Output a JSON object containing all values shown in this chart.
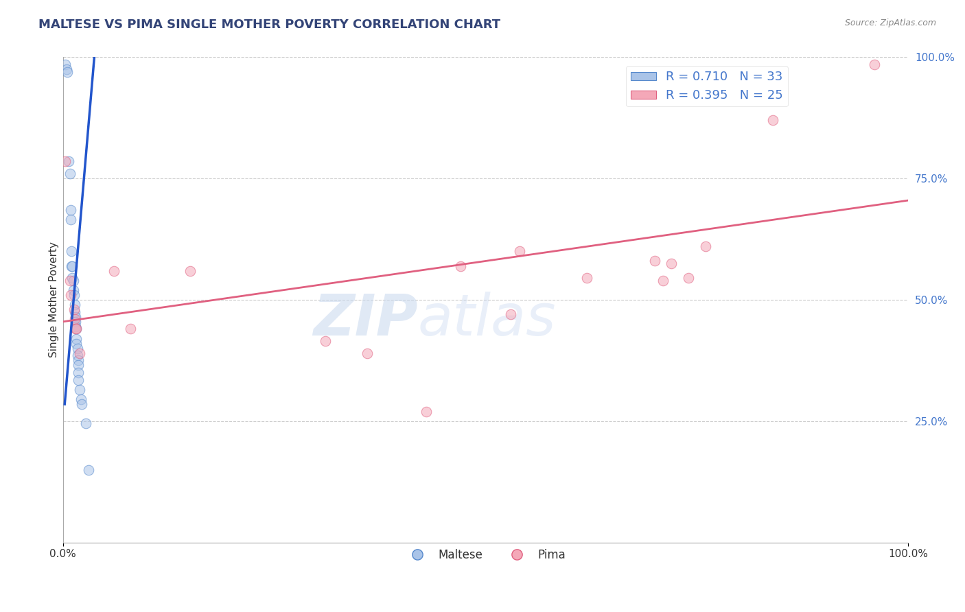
{
  "title": "MALTESE VS PIMA SINGLE MOTHER POVERTY CORRELATION CHART",
  "source": "Source: ZipAtlas.com",
  "ylabel": "Single Mother Poverty",
  "xlim": [
    0.0,
    1.0
  ],
  "ylim": [
    0.0,
    1.0
  ],
  "grid_color": "#cccccc",
  "background_color": "#ffffff",
  "maltese_color": "#aac4e8",
  "pima_color": "#f4a8b8",
  "maltese_edge": "#5588cc",
  "pima_edge": "#e06080",
  "maltese_line_color": "#2255cc",
  "pima_line_color": "#e06080",
  "maltese_R": "0.710",
  "maltese_N": "33",
  "pima_R": "0.395",
  "pima_N": "25",
  "legend_color": "#4477cc",
  "maltese_x": [
    0.003,
    0.004,
    0.005,
    0.007,
    0.008,
    0.009,
    0.009,
    0.01,
    0.01,
    0.011,
    0.011,
    0.012,
    0.012,
    0.013,
    0.014,
    0.014,
    0.015,
    0.015,
    0.015,
    0.016,
    0.016,
    0.016,
    0.017,
    0.017,
    0.018,
    0.018,
    0.018,
    0.018,
    0.02,
    0.021,
    0.022,
    0.027,
    0.03
  ],
  "maltese_y": [
    0.985,
    0.975,
    0.97,
    0.785,
    0.76,
    0.685,
    0.665,
    0.6,
    0.57,
    0.57,
    0.545,
    0.54,
    0.52,
    0.51,
    0.49,
    0.475,
    0.465,
    0.455,
    0.445,
    0.44,
    0.42,
    0.41,
    0.4,
    0.385,
    0.375,
    0.365,
    0.35,
    0.335,
    0.315,
    0.295,
    0.285,
    0.245,
    0.15
  ],
  "pima_x": [
    0.003,
    0.008,
    0.009,
    0.013,
    0.014,
    0.015,
    0.016,
    0.02,
    0.06,
    0.08,
    0.15,
    0.31,
    0.36,
    0.43,
    0.47,
    0.53,
    0.54,
    0.62,
    0.7,
    0.71,
    0.72,
    0.74,
    0.76,
    0.84,
    0.96
  ],
  "pima_y": [
    0.785,
    0.54,
    0.51,
    0.48,
    0.46,
    0.44,
    0.44,
    0.39,
    0.56,
    0.44,
    0.56,
    0.415,
    0.39,
    0.27,
    0.57,
    0.47,
    0.6,
    0.545,
    0.58,
    0.54,
    0.575,
    0.545,
    0.61,
    0.87,
    0.985
  ],
  "maltese_trend_x": [
    0.002,
    0.038
  ],
  "maltese_trend_y": [
    0.285,
    1.02
  ],
  "pima_trend_x": [
    0.0,
    1.0
  ],
  "pima_trend_y": [
    0.455,
    0.705
  ],
  "watermark_zip": "ZIP",
  "watermark_atlas": "atlas",
  "marker_size": 110,
  "alpha": 0.55
}
